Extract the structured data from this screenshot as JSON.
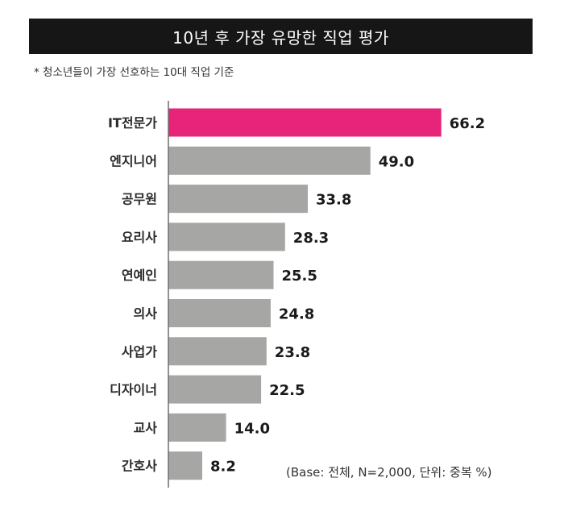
{
  "title": "10년 후 가장 유망한 직업 평가",
  "subtitle": "* 청소년들이 가장 선호하는 10대 직업 기준",
  "note": "(Base: 전체, N=2,000, 단위: 중복 %)",
  "colors": {
    "highlight": "#e8237a",
    "bar": "#a6a6a4",
    "axis": "#6e6e6e",
    "title_bg": "#161616"
  },
  "chart_data": {
    "type": "bar",
    "orientation": "horizontal",
    "categories": [
      "IT전문가",
      "엔지니어",
      "공무원",
      "요리사",
      "연예인",
      "의사",
      "사업가",
      "디자이너",
      "교사",
      "간호사"
    ],
    "values": [
      66.2,
      49.0,
      33.8,
      28.3,
      25.5,
      24.8,
      23.8,
      22.5,
      14.0,
      8.2
    ],
    "value_labels": [
      "66.2",
      "49.0",
      "33.8",
      "28.3",
      "25.5",
      "24.8",
      "23.8",
      "22.5",
      "14.0",
      "8.2"
    ],
    "highlight_index": 0,
    "xlim": [
      0,
      70
    ],
    "grid": false,
    "legend": "none"
  }
}
